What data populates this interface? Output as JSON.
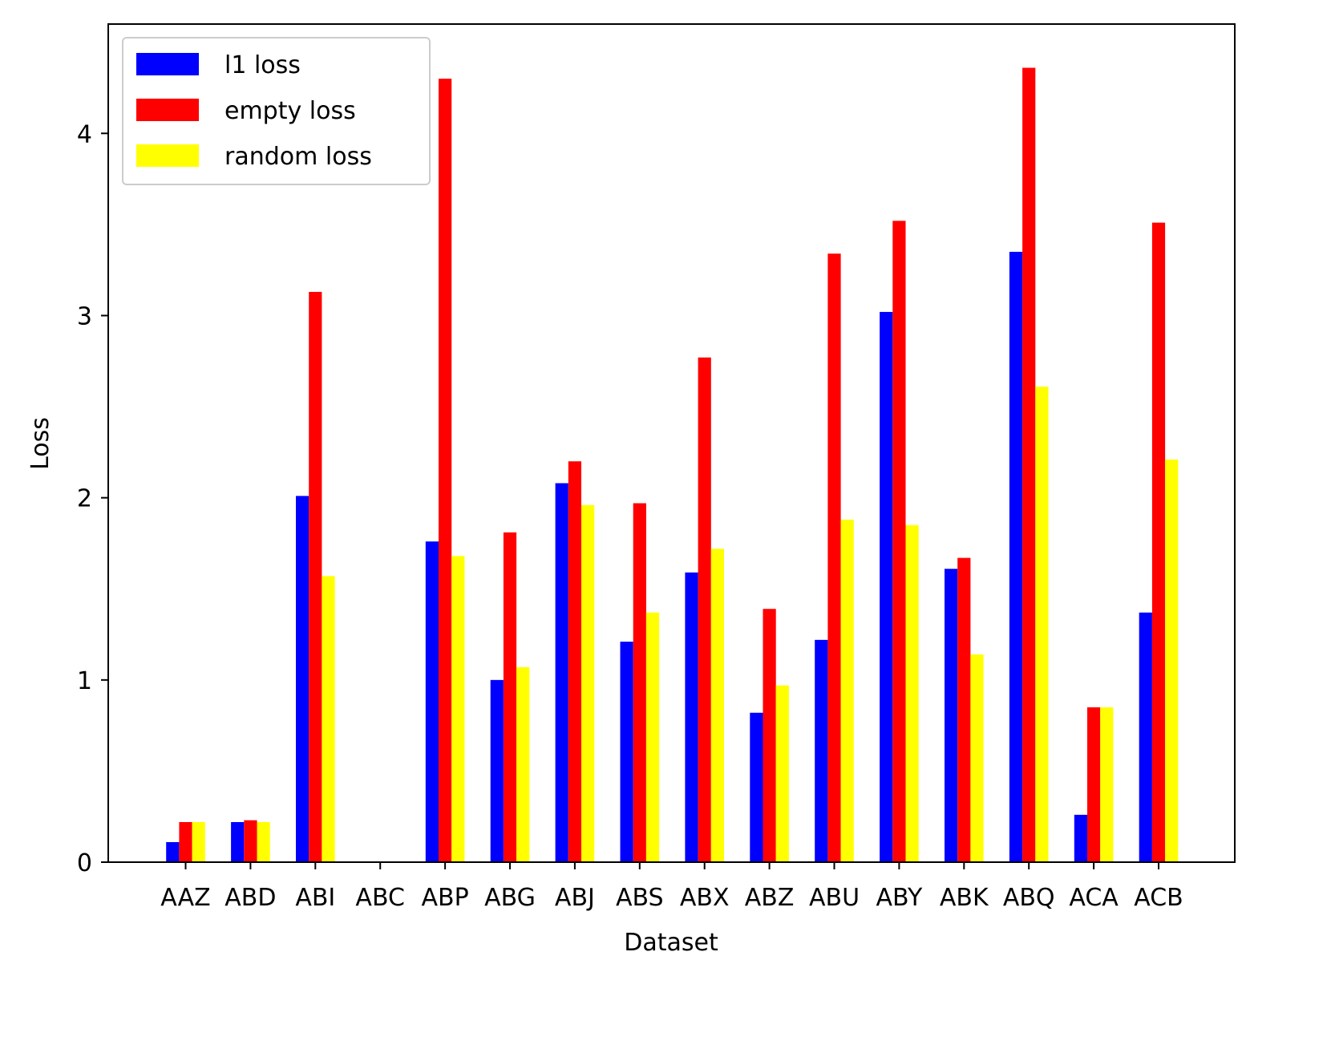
{
  "chart_data": {
    "type": "bar",
    "xlabel": "Dataset",
    "ylabel": "Loss",
    "categories": [
      "AAZ",
      "ABD",
      "ABI",
      "ABC",
      "ABP",
      "ABG",
      "ABJ",
      "ABS",
      "ABX",
      "ABZ",
      "ABU",
      "ABY",
      "ABK",
      "ABQ",
      "ACA",
      "ACB"
    ],
    "ylim": [
      0,
      4.6
    ],
    "yticks": [
      0,
      1,
      2,
      3,
      4
    ],
    "grid": false,
    "legend_position": "top-left",
    "series": [
      {
        "name": "l1 loss",
        "color": "#0000ff",
        "values": [
          0.11,
          0.22,
          2.01,
          0,
          1.76,
          1.0,
          2.08,
          1.21,
          1.59,
          0.82,
          1.22,
          3.02,
          1.61,
          3.35,
          0.26,
          1.37
        ]
      },
      {
        "name": "empty loss",
        "color": "#ff0000",
        "values": [
          0.22,
          0.23,
          3.13,
          0,
          4.3,
          1.81,
          2.2,
          1.97,
          2.77,
          1.39,
          3.34,
          3.52,
          1.67,
          4.36,
          0.85,
          3.51
        ]
      },
      {
        "name": "random loss",
        "color": "#ffff00",
        "values": [
          0.22,
          0.22,
          1.57,
          0,
          1.68,
          1.07,
          1.96,
          1.37,
          1.72,
          0.97,
          1.88,
          1.85,
          1.14,
          2.61,
          0.85,
          2.21
        ]
      }
    ]
  }
}
